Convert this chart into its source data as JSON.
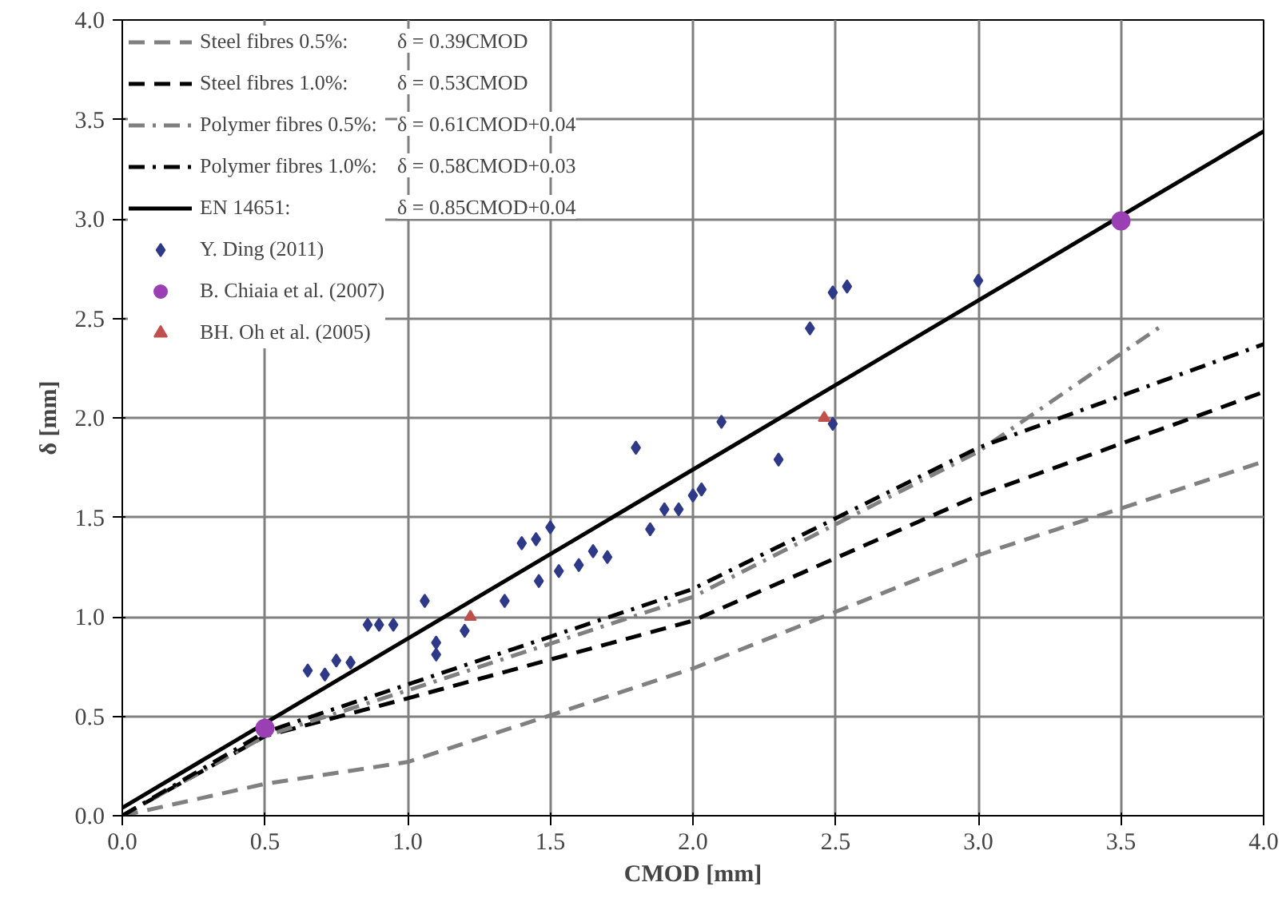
{
  "chart_data": {
    "type": "line",
    "xlabel": "CMOD [mm]",
    "ylabel": "δ [mm]",
    "xlim": [
      0,
      4
    ],
    "ylim": [
      0,
      4
    ],
    "xticks": [
      {
        "value": 0,
        "label": "0.0"
      },
      {
        "value": 0.5,
        "label": "0.5"
      },
      {
        "value": 1,
        "label": "1.0"
      },
      {
        "value": 1.5,
        "label": "1.5"
      },
      {
        "value": 2,
        "label": "2.0"
      },
      {
        "value": 2.5,
        "label": "2.5"
      },
      {
        "value": 3,
        "label": "3.0"
      },
      {
        "value": 3.5,
        "label": "3.5"
      },
      {
        "value": 4,
        "label": "4.0"
      }
    ],
    "yticks": [
      {
        "value": 0,
        "label": "0.0"
      },
      {
        "value": 0.5,
        "label": "0.5"
      },
      {
        "value": 1,
        "label": "1.0"
      },
      {
        "value": 1.5,
        "label": "1.5"
      },
      {
        "value": 2,
        "label": "2.0"
      },
      {
        "value": 2.5,
        "label": "2.5"
      },
      {
        "value": 3,
        "label": "3.0"
      },
      {
        "value": 3.5,
        "label": "3.5"
      },
      {
        "value": 4,
        "label": "4.0"
      }
    ],
    "grid": true,
    "legend": "top left",
    "series": [
      {
        "name": "Steel fibres 0.5%:",
        "color": "#808080",
        "line_style": "dashed",
        "x": [
          0,
          0.5,
          1,
          2,
          3,
          4
        ],
        "values": [
          0,
          0.16,
          0.27,
          0.74,
          1.31,
          1.78
        ]
      },
      {
        "name": "Steel fibres 1.0%:",
        "color": "#000000",
        "line_style": "dashed",
        "x": [
          0,
          0.5,
          1,
          2,
          3,
          4
        ],
        "values": [
          0,
          0.4,
          0.59,
          0.98,
          1.61,
          2.13
        ]
      },
      {
        "name": "Polymer fibres 0.5%:",
        "color": "#808080",
        "line_style": "dashdot",
        "x": [
          0,
          0.5,
          1,
          2,
          3,
          3.65
        ],
        "values": [
          0,
          0.4,
          0.63,
          1.1,
          1.83,
          2.47
        ]
      },
      {
        "name": "Polymer fibres 1.0%:",
        "color": "#000000",
        "line_style": "dashdot",
        "x": [
          0,
          0.5,
          1,
          2,
          3,
          4
        ],
        "values": [
          0,
          0.42,
          0.66,
          1.14,
          1.85,
          2.37
        ]
      },
      {
        "name": "EN 14651:",
        "color": "#000000",
        "line_style": "solid",
        "x": [
          0,
          4
        ],
        "values": [
          0.04,
          3.44
        ]
      },
      {
        "name": "Y. Ding (2011)",
        "type": "scatter",
        "marker": "diamond",
        "color": "#2e3a87",
        "x": [
          0.65,
          0.71,
          0.75,
          0.8,
          0.86,
          0.9,
          0.95,
          1.06,
          1.1,
          1.1,
          1.2,
          1.34,
          1.4,
          1.45,
          1.5,
          1.46,
          1.53,
          1.6,
          1.65,
          1.7,
          1.8,
          1.85,
          1.9,
          1.95,
          2.0,
          2.03,
          2.1,
          2.3,
          2.41,
          2.49,
          2.54,
          2.49,
          3.0
        ],
        "values": [
          0.73,
          0.71,
          0.78,
          0.77,
          0.96,
          0.96,
          0.96,
          1.08,
          0.87,
          0.81,
          0.93,
          1.08,
          1.37,
          1.39,
          1.45,
          1.18,
          1.23,
          1.26,
          1.33,
          1.3,
          1.85,
          1.44,
          1.54,
          1.54,
          1.61,
          1.64,
          1.98,
          1.79,
          2.45,
          2.63,
          2.66,
          1.97,
          2.69
        ]
      },
      {
        "name": "B. Chiaia et al. (2007)",
        "type": "scatter",
        "marker": "circle",
        "color": "#9b3fb5",
        "x": [
          0.5,
          3.5
        ],
        "values": [
          0.44,
          2.99
        ]
      },
      {
        "name": "BH. Oh et al. (2005)",
        "type": "scatter",
        "marker": "triangle",
        "color": "#c0504d",
        "x": [
          1.22,
          2.46
        ],
        "values": [
          1.0,
          2.0
        ]
      }
    ],
    "annotations": [
      "δ = 0.39CMOD",
      "δ = 0.53CMOD",
      "δ = 0.61CMOD+0.04",
      "δ = 0.58CMOD+0.03",
      "δ = 0.85CMOD+0.04"
    ]
  }
}
